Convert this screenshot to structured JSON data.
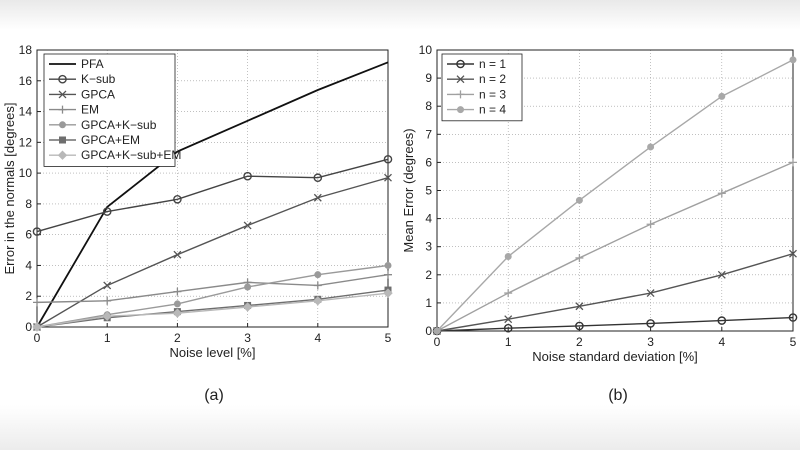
{
  "chart_data": [
    {
      "type": "line",
      "panel_label": "(a)",
      "xlabel": "Noise level [%]",
      "ylabel": "Error in the normals [degrees]",
      "xlim": [
        0,
        5
      ],
      "ylim": [
        0,
        18
      ],
      "xticks": [
        0,
        1,
        2,
        3,
        4,
        5
      ],
      "yticks": [
        0,
        2,
        4,
        6,
        8,
        10,
        12,
        14,
        16,
        18
      ],
      "grid": true,
      "legend_position": "top-right",
      "x": [
        0,
        1,
        2,
        3,
        4,
        5
      ],
      "series": [
        {
          "name": "PFA",
          "values": [
            0,
            7.8,
            11.4,
            13.4,
            15.4,
            17.2
          ],
          "color": "#111111",
          "marker": "none",
          "width": 1.8
        },
        {
          "name": "K−sub",
          "values": [
            6.2,
            7.5,
            8.3,
            9.8,
            9.7,
            10.9
          ],
          "color": "#444444",
          "marker": "circle",
          "width": 1.4
        },
        {
          "name": "GPCA",
          "values": [
            0,
            2.7,
            4.7,
            6.6,
            8.4,
            9.7
          ],
          "color": "#555555",
          "marker": "x",
          "width": 1.4
        },
        {
          "name": "EM",
          "values": [
            1.6,
            1.7,
            2.3,
            2.9,
            2.7,
            3.4
          ],
          "color": "#8a8a8a",
          "marker": "plus",
          "width": 1.4
        },
        {
          "name": "GPCA+K−sub",
          "values": [
            0,
            0.8,
            1.5,
            2.6,
            3.4,
            4.0
          ],
          "color": "#9a9a9a",
          "marker": "dot",
          "width": 1.4
        },
        {
          "name": "GPCA+EM",
          "values": [
            0,
            0.6,
            1.0,
            1.4,
            1.8,
            2.4
          ],
          "color": "#6e6e6e",
          "marker": "square",
          "width": 1.4
        },
        {
          "name": "GPCA+K−sub+EM",
          "values": [
            0,
            0.7,
            0.9,
            1.3,
            1.7,
            2.2
          ],
          "color": "#b8b8b8",
          "marker": "diamond",
          "width": 1.4
        }
      ]
    },
    {
      "type": "line",
      "panel_label": "(b)",
      "xlabel": "Noise standard deviation [%]",
      "ylabel": "Mean Error (degrees)",
      "xlim": [
        0,
        5
      ],
      "ylim": [
        0,
        10
      ],
      "xticks": [
        0,
        1,
        2,
        3,
        4,
        5
      ],
      "yticks": [
        0,
        1,
        2,
        3,
        4,
        5,
        6,
        7,
        8,
        9,
        10
      ],
      "grid": true,
      "legend_position": "top-left",
      "x": [
        0,
        1,
        2,
        3,
        4,
        5
      ],
      "series": [
        {
          "name": "n = 1",
          "values": [
            0,
            0.1,
            0.18,
            0.27,
            0.37,
            0.48
          ],
          "color": "#333333",
          "marker": "circle",
          "width": 1.4
        },
        {
          "name": "n = 2",
          "values": [
            0,
            0.42,
            0.88,
            1.35,
            2.0,
            2.75
          ],
          "color": "#555555",
          "marker": "x",
          "width": 1.4
        },
        {
          "name": "n = 3",
          "values": [
            0,
            1.35,
            2.6,
            3.8,
            4.9,
            6.0
          ],
          "color": "#a0a0a0",
          "marker": "plus",
          "width": 1.4
        },
        {
          "name": "n = 4",
          "values": [
            0,
            2.65,
            4.65,
            6.55,
            8.35,
            9.65
          ],
          "color": "#a8a8a8",
          "marker": "dot",
          "width": 1.4
        }
      ]
    }
  ]
}
